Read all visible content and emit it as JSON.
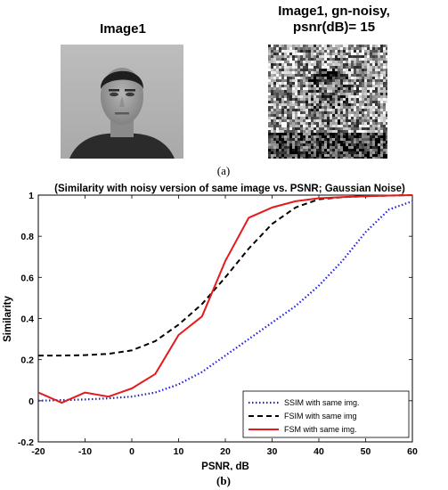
{
  "figure": {
    "image1_title": "Image1",
    "image2_title": "Image1, gn-noisy,\npsnr(dB)= 15",
    "caption_a": "(a)",
    "caption_b": "(b)"
  },
  "chart_data": {
    "type": "line",
    "title": "(Similarity with noisy version of same image vs. PSNR; Gaussian Noise)",
    "xlabel": "PSNR, dB",
    "ylabel": "Similarity",
    "xlim": [
      -20,
      60
    ],
    "ylim": [
      -0.2,
      1
    ],
    "xticks": [
      -20,
      -10,
      0,
      10,
      20,
      30,
      40,
      50,
      60
    ],
    "yticks": [
      -0.2,
      0,
      0.2,
      0.4,
      0.6,
      0.8,
      1
    ],
    "legend_position": "bottom-right",
    "series": [
      {
        "name": "SSIM with same img.",
        "color": "#1f1fe0",
        "style": "dotted",
        "x": [
          -20,
          -15,
          -10,
          -5,
          0,
          5,
          10,
          15,
          20,
          25,
          30,
          35,
          40,
          45,
          50,
          55,
          60
        ],
        "y": [
          0.0,
          0.003,
          0.006,
          0.012,
          0.02,
          0.04,
          0.08,
          0.14,
          0.22,
          0.3,
          0.38,
          0.46,
          0.56,
          0.68,
          0.82,
          0.93,
          0.97
        ]
      },
      {
        "name": "FSIM with same img",
        "color": "#000000",
        "style": "dashed",
        "x": [
          -20,
          -15,
          -10,
          -5,
          0,
          5,
          10,
          15,
          20,
          25,
          30,
          35,
          40,
          45,
          50,
          55,
          60
        ],
        "y": [
          0.22,
          0.22,
          0.222,
          0.228,
          0.245,
          0.29,
          0.37,
          0.47,
          0.6,
          0.74,
          0.86,
          0.94,
          0.98,
          0.99,
          0.995,
          0.998,
          1.0
        ]
      },
      {
        "name": "FSM with same img.",
        "color": "#e41a1c",
        "style": "solid",
        "x": [
          -20,
          -15,
          -10,
          -5,
          0,
          5,
          10,
          15,
          20,
          25,
          30,
          35,
          40,
          45,
          50,
          55,
          60
        ],
        "y": [
          0.04,
          -0.01,
          0.04,
          0.02,
          0.06,
          0.13,
          0.32,
          0.41,
          0.68,
          0.89,
          0.94,
          0.97,
          0.985,
          0.99,
          0.995,
          0.998,
          1.0
        ]
      }
    ]
  }
}
